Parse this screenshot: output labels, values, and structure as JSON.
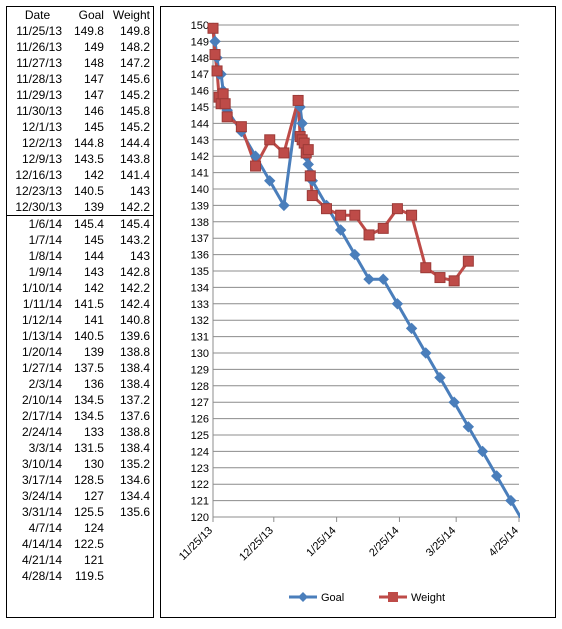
{
  "table": {
    "headers": {
      "date": "Date",
      "goal": "Goal",
      "weight": "Weight"
    },
    "rows": [
      {
        "date": "11/25/13",
        "goal": "149.8",
        "weight": "149.8"
      },
      {
        "date": "11/26/13",
        "goal": "149",
        "weight": "148.2"
      },
      {
        "date": "11/27/13",
        "goal": "148",
        "weight": "147.2"
      },
      {
        "date": "11/28/13",
        "goal": "147",
        "weight": "145.6"
      },
      {
        "date": "11/29/13",
        "goal": "147",
        "weight": "145.2"
      },
      {
        "date": "11/30/13",
        "goal": "146",
        "weight": "145.8"
      },
      {
        "date": "12/1/13",
        "goal": "145",
        "weight": "145.2"
      },
      {
        "date": "12/2/13",
        "goal": "144.8",
        "weight": "144.4"
      },
      {
        "date": "12/9/13",
        "goal": "143.5",
        "weight": "143.8"
      },
      {
        "date": "12/16/13",
        "goal": "142",
        "weight": "141.4"
      },
      {
        "date": "12/23/13",
        "goal": "140.5",
        "weight": "143"
      },
      {
        "date": "12/30/13",
        "goal": "139",
        "weight": "142.2"
      },
      {
        "date": "1/6/14",
        "goal": "145.4",
        "weight": "145.4"
      },
      {
        "date": "1/7/14",
        "goal": "145",
        "weight": "143.2"
      },
      {
        "date": "1/8/14",
        "goal": "144",
        "weight": "143"
      },
      {
        "date": "1/9/14",
        "goal": "143",
        "weight": "142.8"
      },
      {
        "date": "1/10/14",
        "goal": "142",
        "weight": "142.2"
      },
      {
        "date": "1/11/14",
        "goal": "141.5",
        "weight": "142.4"
      },
      {
        "date": "1/12/14",
        "goal": "141",
        "weight": "140.8"
      },
      {
        "date": "1/13/14",
        "goal": "140.5",
        "weight": "139.6"
      },
      {
        "date": "1/20/14",
        "goal": "139",
        "weight": "138.8"
      },
      {
        "date": "1/27/14",
        "goal": "137.5",
        "weight": "138.4"
      },
      {
        "date": "2/3/14",
        "goal": "136",
        "weight": "138.4"
      },
      {
        "date": "2/10/14",
        "goal": "134.5",
        "weight": "137.2"
      },
      {
        "date": "2/17/14",
        "goal": "134.5",
        "weight": "137.6"
      },
      {
        "date": "2/24/14",
        "goal": "133",
        "weight": "138.8"
      },
      {
        "date": "3/3/14",
        "goal": "131.5",
        "weight": "138.4"
      },
      {
        "date": "3/10/14",
        "goal": "130",
        "weight": "135.2"
      },
      {
        "date": "3/17/14",
        "goal": "128.5",
        "weight": "134.6"
      },
      {
        "date": "3/24/14",
        "goal": "127",
        "weight": "134.4"
      },
      {
        "date": "3/31/14",
        "goal": "125.5",
        "weight": "135.6"
      },
      {
        "date": "4/7/14",
        "goal": "124",
        "weight": ""
      },
      {
        "date": "4/14/14",
        "goal": "122.5",
        "weight": ""
      },
      {
        "date": "4/21/14",
        "goal": "121",
        "weight": ""
      },
      {
        "date": "4/28/14",
        "goal": "119.5",
        "weight": ""
      }
    ]
  },
  "chart_data": {
    "type": "line",
    "x_type": "date",
    "xlim": [
      "2013-11-25",
      "2014-04-25"
    ],
    "ylim": [
      120,
      150
    ],
    "y_ticks": [
      120,
      121,
      122,
      123,
      124,
      125,
      126,
      127,
      128,
      129,
      130,
      131,
      132,
      133,
      134,
      135,
      136,
      137,
      138,
      139,
      140,
      141,
      142,
      143,
      144,
      145,
      146,
      147,
      148,
      149,
      150
    ],
    "x_ticks": [
      {
        "date": "2013-11-25",
        "label": "11/25/13"
      },
      {
        "date": "2013-12-25",
        "label": "12/25/13"
      },
      {
        "date": "2014-01-25",
        "label": "1/25/14"
      },
      {
        "date": "2014-02-25",
        "label": "2/25/14"
      },
      {
        "date": "2014-03-25",
        "label": "3/25/14"
      },
      {
        "date": "2014-04-25",
        "label": "4/25/14"
      }
    ],
    "grid": {
      "horizontal": true,
      "vertical": false
    },
    "legend": "bottom",
    "x": [
      "2013-11-25",
      "2013-11-26",
      "2013-11-27",
      "2013-11-28",
      "2013-11-29",
      "2013-11-30",
      "2013-12-01",
      "2013-12-02",
      "2013-12-09",
      "2013-12-16",
      "2013-12-23",
      "2013-12-30",
      "2014-01-06",
      "2014-01-07",
      "2014-01-08",
      "2014-01-09",
      "2014-01-10",
      "2014-01-11",
      "2014-01-12",
      "2014-01-13",
      "2014-01-20",
      "2014-01-27",
      "2014-02-03",
      "2014-02-10",
      "2014-02-17",
      "2014-02-24",
      "2014-03-03",
      "2014-03-10",
      "2014-03-17",
      "2014-03-24",
      "2014-03-31",
      "2014-04-07",
      "2014-04-14",
      "2014-04-21",
      "2014-04-28"
    ],
    "series": [
      {
        "name": "Goal",
        "color": "#4a7ebb",
        "marker": "diamond",
        "values": [
          149.8,
          149,
          148,
          147,
          147,
          146,
          145,
          144.8,
          143.5,
          142,
          140.5,
          139,
          145.4,
          145,
          144,
          143,
          142,
          141.5,
          141,
          140.5,
          139,
          137.5,
          136,
          134.5,
          134.5,
          133,
          131.5,
          130,
          128.5,
          127,
          125.5,
          124,
          122.5,
          121,
          119.5
        ]
      },
      {
        "name": "Weight",
        "color": "#be4b48",
        "marker": "square",
        "values": [
          149.8,
          148.2,
          147.2,
          145.6,
          145.2,
          145.8,
          145.2,
          144.4,
          143.8,
          141.4,
          143,
          142.2,
          145.4,
          143.2,
          143,
          142.8,
          142.2,
          142.4,
          140.8,
          139.6,
          138.8,
          138.4,
          138.4,
          137.2,
          137.6,
          138.8,
          138.4,
          135.2,
          134.6,
          134.4,
          135.6,
          null,
          null,
          null,
          null
        ]
      }
    ]
  }
}
